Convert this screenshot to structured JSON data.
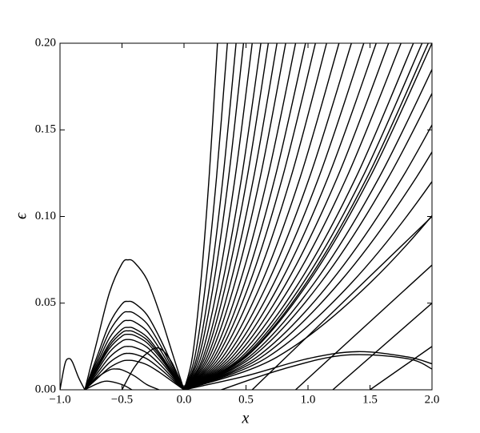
{
  "chart_data": {
    "type": "line",
    "color": "#000000",
    "xlabel": "x",
    "ylabel": "ϵ",
    "xlim": [
      -1,
      2
    ],
    "ylim": [
      0,
      0.2
    ],
    "xticks": [
      {
        "value": -1,
        "label": "−1.0"
      },
      {
        "value": -0.5,
        "label": "−0.5"
      },
      {
        "value": 0,
        "label": "0.0"
      },
      {
        "value": 0.5,
        "label": "0.5"
      },
      {
        "value": 1,
        "label": "1.0"
      },
      {
        "value": 1.5,
        "label": "1.5"
      },
      {
        "value": 2,
        "label": "2.0"
      }
    ],
    "yticks": [
      {
        "value": 0,
        "label": "0.00"
      },
      {
        "value": 0.05,
        "label": "0.05"
      },
      {
        "value": 0.1,
        "label": "0.10"
      },
      {
        "value": 0.15,
        "label": "0.15"
      },
      {
        "value": 0.2,
        "label": "0.20"
      }
    ],
    "series": [
      {
        "x": [
          -1,
          -0.96,
          -0.93,
          -0.9,
          -0.85,
          -0.8
        ],
        "values": [
          0,
          0.015,
          0.018,
          0.016,
          0.007,
          0
        ]
      },
      {
        "x": [
          -0.8,
          -0.7,
          -0.6,
          -0.5,
          -0.45,
          -0.4,
          -0.3,
          -0.2,
          -0.1,
          0
        ],
        "values": [
          0,
          0.0285,
          0.0563,
          0.0728,
          0.075,
          0.0735,
          0.0638,
          0.045,
          0.0225,
          0
        ]
      },
      {
        "x": [
          -0.8,
          -0.7,
          -0.6,
          -0.5,
          -0.45,
          -0.4,
          -0.3,
          -0.2,
          -0.1,
          0
        ],
        "values": [
          0,
          0.0194,
          0.0383,
          0.0495,
          0.051,
          0.05,
          0.0434,
          0.0306,
          0.0153,
          0
        ]
      },
      {
        "x": [
          -0.8,
          -0.7,
          -0.6,
          -0.5,
          -0.45,
          -0.4,
          -0.3,
          -0.2,
          -0.1,
          0
        ],
        "values": [
          0,
          0.0171,
          0.0338,
          0.0437,
          0.045,
          0.0441,
          0.0383,
          0.027,
          0.0135,
          0
        ]
      },
      {
        "x": [
          -0.8,
          -0.7,
          -0.6,
          -0.5,
          -0.45,
          -0.4,
          -0.3,
          -0.2,
          -0.1,
          0
        ],
        "values": [
          0,
          0.0152,
          0.03,
          0.0388,
          0.04,
          0.0392,
          0.034,
          0.024,
          0.012,
          0
        ]
      },
      {
        "x": [
          -0.8,
          -0.7,
          -0.6,
          -0.5,
          -0.45,
          -0.4,
          -0.3,
          -0.2,
          -0.1,
          0
        ],
        "values": [
          0,
          0.0137,
          0.027,
          0.0349,
          0.036,
          0.0353,
          0.0306,
          0.0216,
          0.0108,
          0
        ]
      },
      {
        "x": [
          -0.8,
          -0.7,
          -0.6,
          -0.5,
          -0.45,
          -0.4,
          -0.3,
          -0.2,
          -0.1,
          0
        ],
        "values": [
          0,
          0.0129,
          0.0255,
          0.033,
          0.034,
          0.0333,
          0.0289,
          0.0204,
          0.0102,
          0
        ]
      },
      {
        "x": [
          -0.8,
          -0.7,
          -0.6,
          -0.5,
          -0.45,
          -0.4,
          -0.3,
          -0.2,
          -0.1,
          0
        ],
        "values": [
          0,
          0.0122,
          0.024,
          0.031,
          0.032,
          0.0314,
          0.0272,
          0.0192,
          0.0096,
          0
        ]
      },
      {
        "x": [
          -0.8,
          -0.7,
          -0.6,
          -0.5,
          -0.45,
          -0.4,
          -0.3,
          -0.2,
          -0.1,
          0
        ],
        "values": [
          0,
          0.011,
          0.0218,
          0.0281,
          0.029,
          0.0284,
          0.0247,
          0.0174,
          0.0087,
          0
        ]
      },
      {
        "x": [
          -0.8,
          -0.7,
          -0.6,
          -0.5,
          -0.45,
          -0.4,
          -0.3,
          -0.2,
          -0.1,
          0
        ],
        "values": [
          0,
          0.0095,
          0.0188,
          0.0243,
          0.025,
          0.0245,
          0.0213,
          0.015,
          0.0075,
          0
        ]
      },
      {
        "x": [
          -0.8,
          -0.7,
          -0.6,
          -0.5,
          -0.45,
          -0.4,
          -0.3,
          -0.2,
          -0.1,
          0
        ],
        "values": [
          0,
          0.008,
          0.0158,
          0.0204,
          0.021,
          0.0206,
          0.0179,
          0.0126,
          0.0063,
          0
        ]
      },
      {
        "x": [
          -0.8,
          -0.7,
          -0.6,
          -0.5,
          -0.45,
          -0.4,
          -0.3,
          -0.2,
          -0.1,
          0
        ],
        "values": [
          0,
          0.0065,
          0.0128,
          0.0165,
          0.017,
          0.0167,
          0.0145,
          0.0102,
          0.0051,
          0
        ]
      },
      {
        "x": [
          -0.8,
          -0.7,
          -0.6,
          -0.55,
          -0.5,
          -0.4,
          -0.3,
          -0.2
        ],
        "values": [
          0,
          0.007,
          0.0115,
          0.012,
          0.0115,
          0.008,
          0.003,
          0
        ]
      },
      {
        "x": [
          -0.8,
          -0.7,
          -0.62,
          -0.5,
          -0.42
        ],
        "values": [
          0,
          0.0035,
          0.005,
          0.003,
          0
        ]
      },
      {
        "x": [
          -0.5,
          -0.4,
          -0.3,
          -0.2,
          -0.1,
          0
        ],
        "values": [
          0,
          0.013,
          0.021,
          0.024,
          0.016,
          0
        ]
      },
      {
        "x": [
          0,
          0.0675,
          0.135,
          0.2025,
          0.27
        ],
        "values": [
          0,
          0.0189,
          0.0616,
          0.1227,
          0.2
        ]
      },
      {
        "x": [
          0,
          0.0875,
          0.175,
          0.2625,
          0.35
        ],
        "values": [
          0,
          0.0189,
          0.0616,
          0.1227,
          0.2
        ]
      },
      {
        "x": [
          0,
          0.105,
          0.21,
          0.315,
          0.42
        ],
        "values": [
          0,
          0.0189,
          0.0616,
          0.1227,
          0.2
        ]
      },
      {
        "x": [
          0,
          0.12,
          0.24,
          0.36,
          0.48
        ],
        "values": [
          0,
          0.0189,
          0.0616,
          0.1227,
          0.2
        ]
      },
      {
        "x": [
          0,
          0.1375,
          0.275,
          0.4125,
          0.55
        ],
        "values": [
          0,
          0.0189,
          0.0616,
          0.1227,
          0.2
        ]
      },
      {
        "x": [
          0,
          0.155,
          0.31,
          0.465,
          0.62
        ],
        "values": [
          0,
          0.0189,
          0.0616,
          0.1227,
          0.2
        ]
      },
      {
        "x": [
          0,
          0.17,
          0.34,
          0.51,
          0.68
        ],
        "values": [
          0,
          0.0189,
          0.0616,
          0.1227,
          0.2
        ]
      },
      {
        "x": [
          0,
          0.1875,
          0.375,
          0.5625,
          0.75
        ],
        "values": [
          0,
          0.0189,
          0.0616,
          0.1227,
          0.2
        ]
      },
      {
        "x": [
          0,
          0.205,
          0.41,
          0.615,
          0.82
        ],
        "values": [
          0,
          0.0189,
          0.0616,
          0.1227,
          0.2
        ]
      },
      {
        "x": [
          0,
          0.225,
          0.45,
          0.675,
          0.9
        ],
        "values": [
          0,
          0.0189,
          0.0616,
          0.1227,
          0.2
        ]
      },
      {
        "x": [
          0,
          0.245,
          0.49,
          0.735,
          0.98
        ],
        "values": [
          0,
          0.0189,
          0.0616,
          0.1227,
          0.2
        ]
      },
      {
        "x": [
          0,
          0.265,
          0.53,
          0.795,
          1.06
        ],
        "values": [
          0,
          0.0189,
          0.0616,
          0.1227,
          0.2
        ]
      },
      {
        "x": [
          0,
          0.2875,
          0.575,
          0.8625,
          1.15
        ],
        "values": [
          0,
          0.0189,
          0.0616,
          0.1227,
          0.2
        ]
      },
      {
        "x": [
          0,
          0.3125,
          0.625,
          0.9375,
          1.25
        ],
        "values": [
          0,
          0.0189,
          0.0616,
          0.1227,
          0.2
        ]
      },
      {
        "x": [
          0,
          0.3375,
          0.675,
          1.0125,
          1.35
        ],
        "values": [
          0,
          0.0189,
          0.0616,
          0.1227,
          0.2
        ]
      },
      {
        "x": [
          0,
          0.3625,
          0.725,
          1.0875,
          1.45
        ],
        "values": [
          0,
          0.0189,
          0.0616,
          0.1227,
          0.2
        ]
      },
      {
        "x": [
          0,
          0.3875,
          0.775,
          1.1625,
          1.55
        ],
        "values": [
          0,
          0.0189,
          0.0616,
          0.1227,
          0.2
        ]
      },
      {
        "x": [
          0,
          0.4125,
          0.825,
          1.2375,
          1.65
        ],
        "values": [
          0,
          0.0189,
          0.0616,
          0.1227,
          0.2
        ]
      },
      {
        "x": [
          0,
          0.4375,
          0.875,
          1.3125,
          1.75
        ],
        "values": [
          0,
          0.0189,
          0.0616,
          0.1227,
          0.2
        ]
      },
      {
        "x": [
          0,
          0.4625,
          0.925,
          1.3875,
          1.85
        ],
        "values": [
          0,
          0.0189,
          0.0616,
          0.1227,
          0.2
        ]
      },
      {
        "x": [
          0,
          0.48,
          0.96,
          1.44,
          1.92
        ],
        "values": [
          0,
          0.0189,
          0.0616,
          0.1227,
          0.2
        ]
      },
      {
        "x": [
          0,
          0.4925,
          0.985,
          1.4775,
          1.97
        ],
        "values": [
          0,
          0.0189,
          0.0616,
          0.1227,
          0.2
        ]
      },
      {
        "x": [
          0,
          0.5,
          1,
          1.5,
          2
        ],
        "values": [
          0,
          0.0189,
          0.0616,
          0.1227,
          0.2
        ]
      },
      {
        "x": [
          0,
          0.525,
          1.05,
          1.575,
          2.1
        ],
        "values": [
          0,
          0.0189,
          0.0616,
          0.1227,
          0.2
        ]
      },
      {
        "x": [
          0,
          0.55,
          1.1,
          1.65,
          2.2
        ],
        "values": [
          0,
          0.0189,
          0.0616,
          0.1227,
          0.2
        ]
      },
      {
        "x": [
          0,
          0.5875,
          1.175,
          1.7625,
          2.35
        ],
        "values": [
          0,
          0.0189,
          0.0616,
          0.1227,
          0.2
        ]
      },
      {
        "x": [
          0,
          0.625,
          1.25,
          1.875,
          2.5
        ],
        "values": [
          0,
          0.0189,
          0.0616,
          0.1227,
          0.2
        ]
      },
      {
        "x": [
          0,
          0.675,
          1.35,
          2.025,
          2.7
        ],
        "values": [
          0,
          0.0189,
          0.0616,
          0.1227,
          0.2
        ]
      },
      {
        "x": [
          0,
          0.75,
          1.5,
          2.25,
          3
        ],
        "values": [
          0,
          0.0189,
          0.0616,
          0.1227,
          0.2
        ]
      },
      {
        "x": [
          0,
          0.5,
          1,
          1.4,
          1.8,
          2
        ],
        "values": [
          0,
          0.008,
          0.018,
          0.022,
          0.019,
          0.015
        ]
      },
      {
        "x": [
          0.3,
          0.8,
          1.3,
          1.8,
          2
        ],
        "values": [
          0,
          0.012,
          0.02,
          0.018,
          0.012
        ]
      },
      {
        "x": [
          0.55,
          2
        ],
        "values": [
          0,
          0.1
        ]
      },
      {
        "x": [
          0.9,
          2
        ],
        "values": [
          0,
          0.072
        ]
      },
      {
        "x": [
          1.2,
          2
        ],
        "values": [
          0,
          0.05
        ]
      },
      {
        "x": [
          1.5,
          2
        ],
        "values": [
          0,
          0.025
        ]
      }
    ]
  }
}
